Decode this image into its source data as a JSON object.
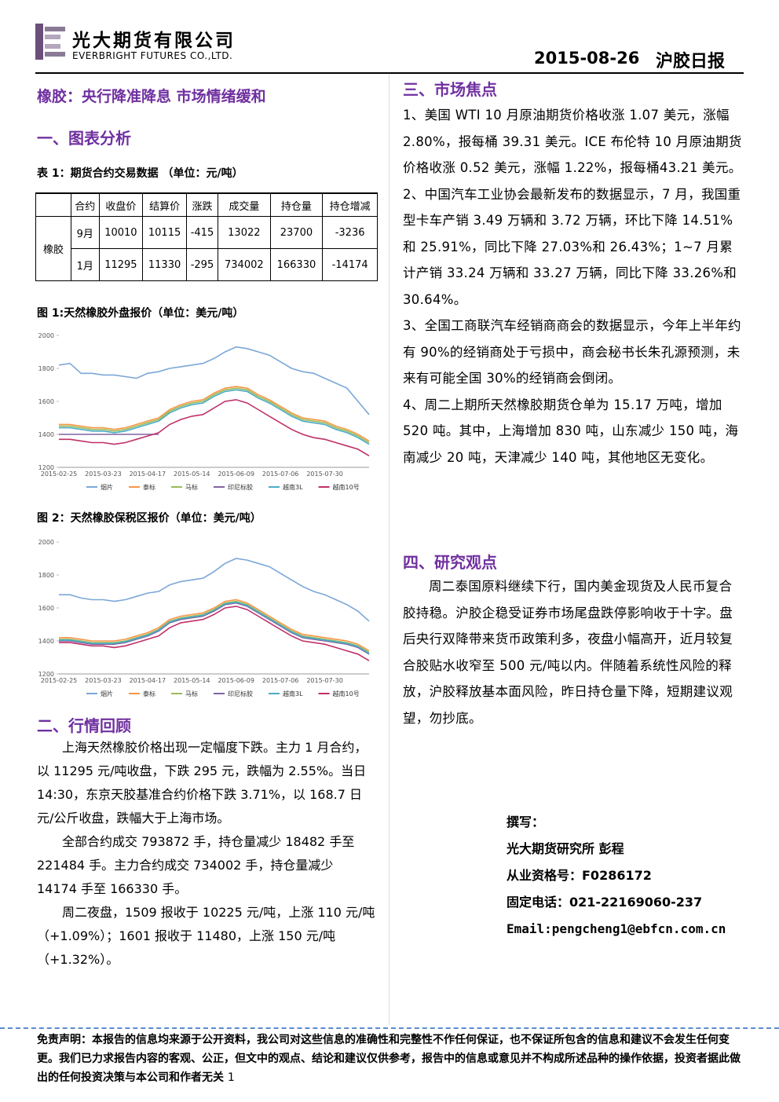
{
  "header": {
    "company_cn": "光大期货有限公司",
    "company_en": "EVERBRIGHT FUTURES CO.,LTD.",
    "date": "2015-08-26",
    "report": "沪胶日报"
  },
  "left": {
    "headline": "橡胶：央行降准降息 市场情绪缓和",
    "section1": "一、图表分析",
    "table_caption": "表 1：期货合约交易数据 （单位：元/吨）",
    "table": {
      "header": [
        "合约",
        "收盘价",
        "结算价",
        "涨跌",
        "成交量",
        "持仓量",
        "持仓增减"
      ],
      "group": "橡胶",
      "rows": [
        [
          "9月",
          10010,
          10115,
          -415,
          13022,
          23700,
          -3236
        ],
        [
          "1月",
          11295,
          11330,
          -295,
          734002,
          166330,
          -14174
        ]
      ]
    },
    "fig1_caption": "图 1:天然橡胶外盘报价（单位：美元/吨）",
    "fig2_caption": "图 2：天然橡胶保税区报价（单位：美元/吨）",
    "section2": "二、行情回顾",
    "section2_paragraphs": [
      "上海天然橡胶价格出现一定幅度下跌。主力 1 月合约，以 11295 元/吨收盘，下跌 295 元，跌幅为 2.55%。当日 14:30，东京天胶基准合约价格下跌 3.71%，以 168.7 日元/公斤收盘，跌幅大于上海市场。",
      "全部合约成交 793872 手，持仓量减少 18482 手至 221484 手。主力合约成交 734002 手，持仓量减少 14174 手至 166330 手。",
      "周二夜盘，1509 报收于 10225 元/吨，上涨 110 元/吨（+1.09%）；1601 报收于 11480，上涨 150 元/吨（+1.32%）。"
    ]
  },
  "right": {
    "section3": "三、市场焦点",
    "items": [
      "1、美国 WTI 10 月原油期货价格收涨 1.07 美元，涨幅 2.80%，报每桶 39.31 美元。ICE 布伦特 10 月原油期货价格收涨 0.52 美元，涨幅 1.22%，报每桶43.21 美元。",
      "2、中国汽车工业协会最新发布的数据显示，7 月，我国重型卡车产销 3.49 万辆和 3.72 万辆，环比下降 14.51%和 25.91%，同比下降 27.03%和 26.43%；1~7 月累计产销 33.24 万辆和 33.27 万辆，同比下降 33.26%和 30.64%。",
      "3、全国工商联汽车经销商商会的数据显示，今年上半年约有 90%的经销商处于亏损中，商会秘书长朱孔源预测，未来有可能全国 30%的经销商会倒闭。",
      "4、周二上期所天然橡胶期货仓单为 15.17 万吨，增加 520 吨。其中，上海增加 830 吨，山东减少 150 吨，海南减少 20 吨，天津减少 140 吨，其他地区无变化。"
    ],
    "section4": "四、研究观点",
    "view": "周二泰国原料继续下行，国内美金现货及人民币复合胶持稳。沪胶企稳受证券市场尾盘跌停影响收于十字。盘后央行双降带来货币政策利多，夜盘小幅高开，近月较复合胶贴水收窄至 500 元/吨以内。伴随着系统性风险的释放，沪胶释放基本面风险，昨日持仓量下降，短期建议观望，勿抄底。",
    "author": [
      "撰写：",
      "光大期货研究所 彭程",
      "从业资格号：F0286172",
      "固定电话：021-22169060-237",
      "Email:pengcheng1@ebfcn.com.cn"
    ]
  },
  "footer": {
    "disclaimer": "免责声明：本报告的信息均来源于公开资料，我公司对这些信息的准确性和完整性不作任何保证，也不保证所包含的信息和建议不会发生任何变更。我们已力求报告内容的客观、公正，但文中的观点、结论和建议仅供参考，报告中的信息或意见并不构成所述品种的操作依据，投资者据此做出的任何投资决策与本公司和作者无关",
    "page": "1"
  },
  "chart_data": [
    {
      "type": "line",
      "categories": [
        "2015-02-25",
        null,
        null,
        null,
        "2015-03-23",
        null,
        null,
        null,
        "2015-04-17",
        null,
        null,
        null,
        "2015-05-14",
        null,
        null,
        null,
        "2015-06-09",
        null,
        null,
        null,
        "2015-07-06",
        null,
        null,
        null,
        "2015-07-30",
        null,
        null,
        null,
        null
      ],
      "ylim": [
        1200,
        2000
      ],
      "yticks": [
        1200,
        1400,
        1600,
        1800,
        2000
      ],
      "series": [
        {
          "name": "烟片",
          "color": "#7ba7d7",
          "values": [
            1820,
            1830,
            1770,
            1770,
            1760,
            1760,
            1750,
            1740,
            1770,
            1780,
            1800,
            1810,
            1820,
            1830,
            1860,
            1900,
            1930,
            1920,
            1900,
            1880,
            1840,
            1800,
            1780,
            1770,
            1740,
            1710,
            1680,
            1600,
            1520
          ]
        },
        {
          "name": "泰标",
          "color": "#f79646",
          "values": [
            1460,
            1460,
            1450,
            1440,
            1440,
            1430,
            1440,
            1460,
            1480,
            1500,
            1550,
            1580,
            1600,
            1610,
            1650,
            1680,
            1690,
            1680,
            1640,
            1610,
            1570,
            1530,
            1500,
            1490,
            1480,
            1450,
            1430,
            1400,
            1360
          ]
        },
        {
          "name": "马标",
          "color": "#9bbb59",
          "values": [
            1450,
            1450,
            1440,
            1430,
            1430,
            1420,
            1430,
            1450,
            1470,
            1490,
            1540,
            1570,
            1590,
            1600,
            1640,
            1670,
            1680,
            1670,
            1630,
            1600,
            1560,
            1520,
            1490,
            1480,
            1470,
            1440,
            1420,
            1390,
            1350
          ]
        },
        {
          "name": "印尼标胶",
          "color": "#8064a2",
          "values": [
            1400,
            1400,
            1400,
            1400,
            1400,
            1400,
            1400,
            1400,
            1400,
            1400,
            null,
            null,
            null,
            null,
            null,
            null,
            null,
            null,
            null,
            null,
            null,
            null,
            null,
            null,
            null,
            null,
            null,
            null,
            null
          ]
        },
        {
          "name": "越南3L",
          "color": "#4bacc6",
          "values": [
            1440,
            1440,
            1430,
            1420,
            1420,
            1410,
            1420,
            1440,
            1460,
            1480,
            1530,
            1560,
            1580,
            1590,
            1630,
            1660,
            1670,
            1660,
            1620,
            1590,
            1550,
            1510,
            1480,
            1470,
            1460,
            1430,
            1410,
            1380,
            1340
          ]
        },
        {
          "name": "越南10号",
          "color": "#c0306a",
          "values": [
            1370,
            1370,
            1360,
            1350,
            1350,
            1340,
            1350,
            1370,
            1390,
            1410,
            1460,
            1490,
            1510,
            1520,
            1560,
            1600,
            1610,
            1590,
            1550,
            1510,
            1470,
            1430,
            1400,
            1380,
            1370,
            1350,
            1330,
            1310,
            1270
          ]
        }
      ]
    },
    {
      "type": "line",
      "categories": [
        "2015-02-25",
        null,
        null,
        null,
        "2015-03-23",
        null,
        null,
        null,
        "2015-04-17",
        null,
        null,
        null,
        "2015-05-14",
        null,
        null,
        null,
        "2015-06-09",
        null,
        null,
        null,
        "2015-07-06",
        null,
        null,
        null,
        "2015-07-30",
        null,
        null,
        null,
        null
      ],
      "ylim": [
        1200,
        2000
      ],
      "yticks": [
        1200,
        1400,
        1600,
        1800,
        2000
      ],
      "series": [
        {
          "name": "烟片",
          "color": "#7ba7d7",
          "values": [
            1680,
            1680,
            1660,
            1650,
            1650,
            1640,
            1650,
            1670,
            1690,
            1700,
            1740,
            1760,
            1770,
            1780,
            1820,
            1870,
            1900,
            1890,
            1870,
            1850,
            1810,
            1770,
            1730,
            1700,
            1680,
            1650,
            1620,
            1580,
            1520
          ]
        },
        {
          "name": "泰标",
          "color": "#f79646",
          "values": [
            1420,
            1420,
            1410,
            1400,
            1400,
            1400,
            1410,
            1430,
            1450,
            1480,
            1530,
            1550,
            1560,
            1570,
            1600,
            1640,
            1650,
            1630,
            1590,
            1550,
            1510,
            1470,
            1440,
            1430,
            1420,
            1410,
            1400,
            1380,
            1340
          ]
        },
        {
          "name": "马标",
          "color": "#9bbb59",
          "values": [
            1410,
            1410,
            1400,
            1390,
            1390,
            1390,
            1400,
            1420,
            1440,
            1470,
            1520,
            1540,
            1550,
            1560,
            1590,
            1630,
            1640,
            1620,
            1580,
            1540,
            1500,
            1460,
            1430,
            1420,
            1410,
            1400,
            1390,
            1370,
            1330
          ]
        },
        {
          "name": "印尼标胶",
          "color": "#8064a2",
          "values": [
            1400,
            1400,
            1390,
            1380,
            1380,
            1380,
            1390,
            1410,
            1430,
            1460,
            1510,
            1530,
            1540,
            1550,
            1580,
            1620,
            1630,
            1610,
            1570,
            1530,
            1490,
            1450,
            1420,
            1410,
            1400,
            1390,
            1380,
            1360,
            1320
          ]
        },
        {
          "name": "越南3L",
          "color": "#4bacc6",
          "values": [
            1405,
            1405,
            1395,
            1385,
            1385,
            1385,
            1395,
            1415,
            1435,
            1465,
            1515,
            1535,
            1545,
            1555,
            1585,
            1625,
            1635,
            1615,
            1575,
            1535,
            1495,
            1455,
            1425,
            1415,
            1405,
            1395,
            1385,
            1365,
            1325
          ]
        },
        {
          "name": "越南10号",
          "color": "#c0306a",
          "values": [
            1390,
            1390,
            1380,
            1370,
            1370,
            1360,
            1370,
            1390,
            1410,
            1430,
            1480,
            1510,
            1520,
            1530,
            1560,
            1600,
            1610,
            1590,
            1550,
            1510,
            1470,
            1430,
            1400,
            1390,
            1380,
            1360,
            1340,
            1320,
            1280
          ]
        }
      ]
    }
  ]
}
